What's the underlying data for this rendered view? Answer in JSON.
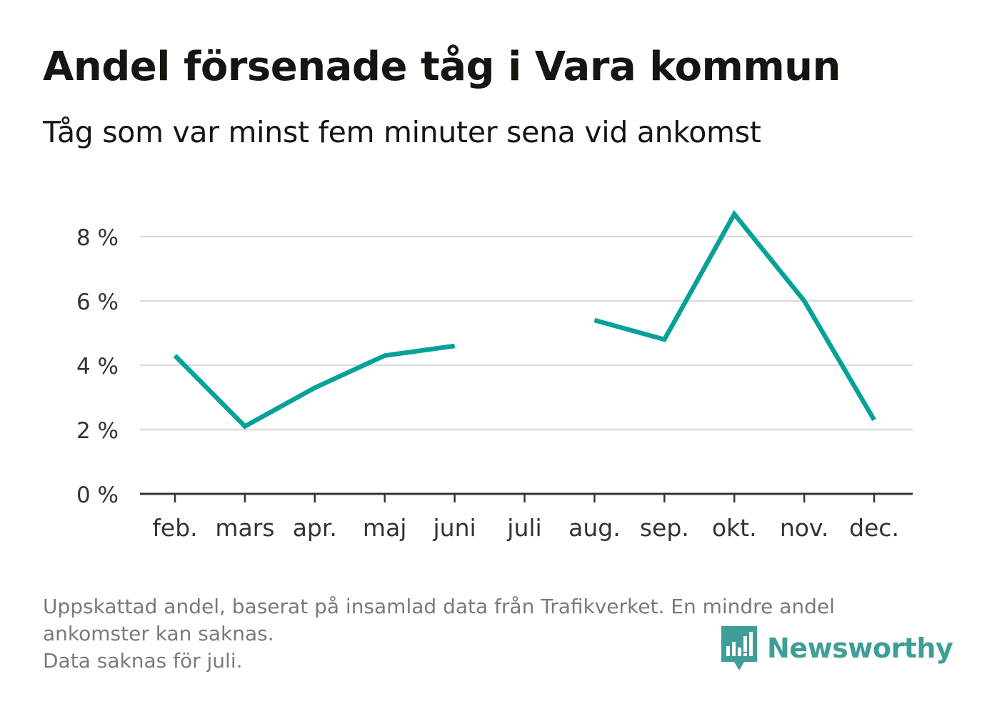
{
  "header": {
    "title": "Andel försenade tåg i Vara kommun",
    "subtitle": "Tåg som var minst fem minuter sena vid ankomst"
  },
  "chart_data": {
    "type": "line",
    "categories": [
      "feb.",
      "mars",
      "apr.",
      "maj",
      "juni",
      "juli",
      "aug.",
      "sep.",
      "okt.",
      "nov.",
      "dec."
    ],
    "series": [
      {
        "values": [
          4.3,
          2.1,
          3.3,
          4.3,
          4.6,
          null,
          5.4,
          4.8,
          8.7,
          6.0,
          2.3
        ]
      }
    ],
    "y_ticks": [
      0,
      2,
      4,
      6,
      8
    ],
    "y_tick_labels": [
      "0 %",
      "2 %",
      "4 %",
      "6 %",
      "8 %"
    ],
    "ylim": [
      0,
      9
    ],
    "grid": true,
    "line_color": "#06a199",
    "grid_color": "#dcdcdc",
    "axis_color": "#333333"
  },
  "footnote": {
    "lines": [
      "Uppskattad andel, baserat på insamlad data från Trafikverket. En mindre andel",
      "ankomster kan saknas.",
      "Data saknas för juli."
    ]
  },
  "brand": {
    "name": "Newsworthy",
    "color": "#3f9e97",
    "icon": "newsworthy-logo-icon"
  }
}
